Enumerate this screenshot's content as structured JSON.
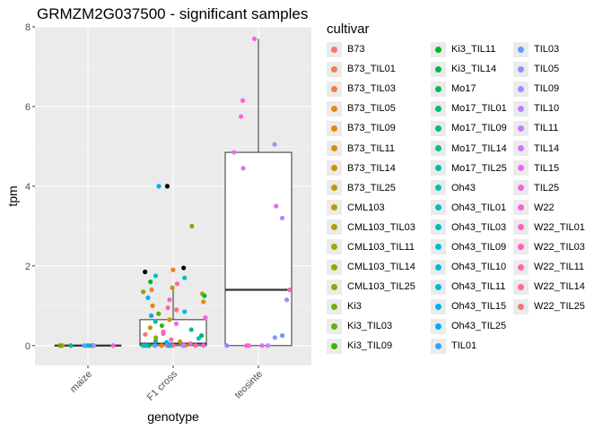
{
  "chart_data": {
    "type": "boxplot",
    "title": "GRMZM2G037500 - significant samples",
    "xlabel": "genotype",
    "ylabel": "tpm",
    "categories": [
      "maize",
      "F1 cross",
      "teosinte"
    ],
    "ylim": [
      -0.5,
      8.0
    ],
    "yticks": [
      0,
      2,
      4,
      6,
      8
    ],
    "grid": true,
    "legend_title": "cultivar",
    "legend_position": "right",
    "boxes": [
      {
        "category": "maize",
        "min": 0,
        "q1": 0,
        "median": 0,
        "q3": 0,
        "max": 0
      },
      {
        "category": "F1 cross",
        "min": 0,
        "q1": 0,
        "median": 0.05,
        "q3": 0.65,
        "max": 1.5
      },
      {
        "category": "teosinte",
        "min": 0,
        "q1": 0,
        "median": 1.4,
        "q3": 4.85,
        "max": 7.7
      }
    ],
    "points": {
      "maize": [
        {
          "y": 0,
          "c": "#F8766D"
        },
        {
          "y": 0,
          "c": "#00BA38"
        },
        {
          "y": 0,
          "c": "#C49A00"
        },
        {
          "y": 0,
          "c": "#00C08B"
        },
        {
          "y": 0,
          "c": "#619CFF"
        },
        {
          "y": 0,
          "c": "#00B4EF"
        },
        {
          "y": 0,
          "c": "#53B400"
        },
        {
          "y": 0,
          "c": "#FB61D7"
        },
        {
          "y": 0,
          "c": "#A58AFF"
        }
      ],
      "teosinte": [
        {
          "y": 7.7,
          "c": "#F962DD"
        },
        {
          "y": 6.15,
          "c": "#F564E3"
        },
        {
          "y": 5.75,
          "c": "#F564E3"
        },
        {
          "y": 5.05,
          "c": "#B983FF"
        },
        {
          "y": 4.85,
          "c": "#E76BF3"
        },
        {
          "y": 4.45,
          "c": "#E76BF3"
        },
        {
          "y": 3.5,
          "c": "#E76BF3"
        },
        {
          "y": 3.2,
          "c": "#C77CFF"
        },
        {
          "y": 1.4,
          "c": "#FF61C3"
        },
        {
          "y": 1.15,
          "c": "#A58AFF"
        },
        {
          "y": 0.25,
          "c": "#619CFF"
        },
        {
          "y": 0.2,
          "c": "#9590FF"
        },
        {
          "y": 0,
          "c": "#B983FF"
        },
        {
          "y": 0,
          "c": "#E76BF3"
        },
        {
          "y": 0,
          "c": "#8B93FF"
        },
        {
          "y": 0,
          "c": "#FF61C3"
        },
        {
          "y": 0,
          "c": "#F564E3"
        }
      ],
      "f1": [
        {
          "y": 4.0,
          "c": "#000000"
        },
        {
          "y": 4.0,
          "c": "#00A9FF"
        },
        {
          "y": 3.0,
          "c": "#7CAE00"
        },
        {
          "y": 1.95,
          "c": "#000000"
        },
        {
          "y": 1.85,
          "c": "#000000"
        },
        {
          "y": 1.9,
          "c": "#E7861B"
        },
        {
          "y": 1.75,
          "c": "#00BFC4"
        },
        {
          "y": 1.7,
          "c": "#00C0B8"
        },
        {
          "y": 1.6,
          "c": "#00B81F"
        },
        {
          "y": 1.55,
          "c": "#FF6C91"
        },
        {
          "y": 1.45,
          "c": "#C49A00"
        },
        {
          "y": 1.4,
          "c": "#ED8141"
        },
        {
          "y": 1.35,
          "c": "#7CAE00"
        },
        {
          "y": 1.3,
          "c": "#AEA200"
        },
        {
          "y": 1.25,
          "c": "#00BA38"
        },
        {
          "y": 1.2,
          "c": "#00B0F6"
        },
        {
          "y": 1.15,
          "c": "#FF62BC"
        },
        {
          "y": 1.1,
          "c": "#DB8E00"
        },
        {
          "y": 1.0,
          "c": "#E58700"
        },
        {
          "y": 0.95,
          "c": "#FF6A98"
        },
        {
          "y": 0.9,
          "c": "#F8766D"
        },
        {
          "y": 0.85,
          "c": "#00BCD8"
        },
        {
          "y": 0.8,
          "c": "#53B400"
        },
        {
          "y": 0.75,
          "c": "#00A9FF"
        },
        {
          "y": 0.7,
          "c": "#FB61D7"
        },
        {
          "y": 0.65,
          "c": "#D39200"
        },
        {
          "y": 0.6,
          "c": "#00C1A3"
        },
        {
          "y": 0.55,
          "c": "#F564E3"
        },
        {
          "y": 0.5,
          "c": "#39B600"
        },
        {
          "y": 0.45,
          "c": "#B79F00"
        },
        {
          "y": 0.4,
          "c": "#00BF7D"
        },
        {
          "y": 0.35,
          "c": "#E76BF3"
        },
        {
          "y": 0.3,
          "c": "#FF64B0"
        },
        {
          "y": 0.28,
          "c": "#F8766D"
        },
        {
          "y": 0.25,
          "c": "#00BB4E"
        },
        {
          "y": 0.2,
          "c": "#A3A500"
        },
        {
          "y": 0.18,
          "c": "#00BDD0"
        },
        {
          "y": 0.15,
          "c": "#FF65AC"
        },
        {
          "y": 0.12,
          "c": "#00C097"
        },
        {
          "y": 0.1,
          "c": "#C99800"
        },
        {
          "y": 0.08,
          "c": "#00A5FF"
        },
        {
          "y": 0.05,
          "c": "#FF67A4"
        },
        {
          "y": 0,
          "c": "#F8766D"
        },
        {
          "y": 0,
          "c": "#00BA38"
        },
        {
          "y": 0,
          "c": "#619CFF"
        },
        {
          "y": 0,
          "c": "#FF61C3"
        },
        {
          "y": 0,
          "c": "#00B0F6"
        },
        {
          "y": 0,
          "c": "#00BFC4"
        },
        {
          "y": 0,
          "c": "#F564E3"
        },
        {
          "y": 0,
          "c": "#ED8141"
        },
        {
          "y": 0,
          "c": "#B983FF"
        },
        {
          "y": 0,
          "c": "#FB61D7"
        },
        {
          "y": 0,
          "c": "#E58700"
        },
        {
          "y": 0,
          "c": "#00A9FF"
        },
        {
          "y": 0,
          "c": "#FF6C91"
        },
        {
          "y": 0,
          "c": "#00C1A3"
        },
        {
          "y": 0,
          "c": "#FF64B0"
        },
        {
          "y": 0,
          "c": "#00BCD8"
        }
      ]
    },
    "legend": [
      {
        "label": "B73",
        "color": "#F8766D"
      },
      {
        "label": "B73_TIL01",
        "color": "#F27D52"
      },
      {
        "label": "B73_TIL03",
        "color": "#ED8141"
      },
      {
        "label": "B73_TIL05",
        "color": "#E7861B"
      },
      {
        "label": "B73_TIL09",
        "color": "#E08B00"
      },
      {
        "label": "B73_TIL11",
        "color": "#D89000"
      },
      {
        "label": "B73_TIL14",
        "color": "#CF9400"
      },
      {
        "label": "B73_TIL25",
        "color": "#C59900"
      },
      {
        "label": "CML103",
        "color": "#BB9D00"
      },
      {
        "label": "CML103_TIL03",
        "color": "#AFA100"
      },
      {
        "label": "CML103_TIL11",
        "color": "#A3A500"
      },
      {
        "label": "CML103_TIL14",
        "color": "#95A900"
      },
      {
        "label": "CML103_TIL25",
        "color": "#85AD00"
      },
      {
        "label": "Ki3",
        "color": "#72B000"
      },
      {
        "label": "Ki3_TIL03",
        "color": "#5BB300"
      },
      {
        "label": "Ki3_TIL09",
        "color": "#39B600"
      },
      {
        "label": "Ki3_TIL11",
        "color": "#00B81F"
      },
      {
        "label": "Ki3_TIL14",
        "color": "#00BA42"
      },
      {
        "label": "Mo17",
        "color": "#00BC59"
      },
      {
        "label": "Mo17_TIL01",
        "color": "#00BE6C"
      },
      {
        "label": "Mo17_TIL09",
        "color": "#00BF7D"
      },
      {
        "label": "Mo17_TIL14",
        "color": "#00C08D"
      },
      {
        "label": "Mo17_TIL25",
        "color": "#00C19C"
      },
      {
        "label": "Oh43",
        "color": "#00C1AA"
      },
      {
        "label": "Oh43_TIL01",
        "color": "#00C0B8"
      },
      {
        "label": "Oh43_TIL03",
        "color": "#00BFC4"
      },
      {
        "label": "Oh43_TIL09",
        "color": "#00BDD0"
      },
      {
        "label": "Oh43_TIL10",
        "color": "#00BADB"
      },
      {
        "label": "Oh43_TIL11",
        "color": "#00B6E5"
      },
      {
        "label": "Oh43_TIL15",
        "color": "#00B0F6"
      },
      {
        "label": "Oh43_TIL25",
        "color": "#00ABFD"
      },
      {
        "label": "TIL01",
        "color": "#35A2FF"
      },
      {
        "label": "TIL03",
        "color": "#619CFF"
      },
      {
        "label": "TIL05",
        "color": "#8B93FF"
      },
      {
        "label": "TIL09",
        "color": "#A58AFF"
      },
      {
        "label": "TIL10",
        "color": "#B983FF"
      },
      {
        "label": "TIL11",
        "color": "#C77CFF"
      },
      {
        "label": "TIL14",
        "color": "#D575FE"
      },
      {
        "label": "TIL15",
        "color": "#E76BF3"
      },
      {
        "label": "TIL25",
        "color": "#F564E3"
      },
      {
        "label": "W22",
        "color": "#FB61D7"
      },
      {
        "label": "W22_TIL01",
        "color": "#FF61C9"
      },
      {
        "label": "W22_TIL03",
        "color": "#FF62BC"
      },
      {
        "label": "W22_TIL11",
        "color": "#FF65AE"
      },
      {
        "label": "W22_TIL14",
        "color": "#FF689F"
      },
      {
        "label": "W22_TIL25",
        "color": "#F8766D"
      }
    ]
  }
}
